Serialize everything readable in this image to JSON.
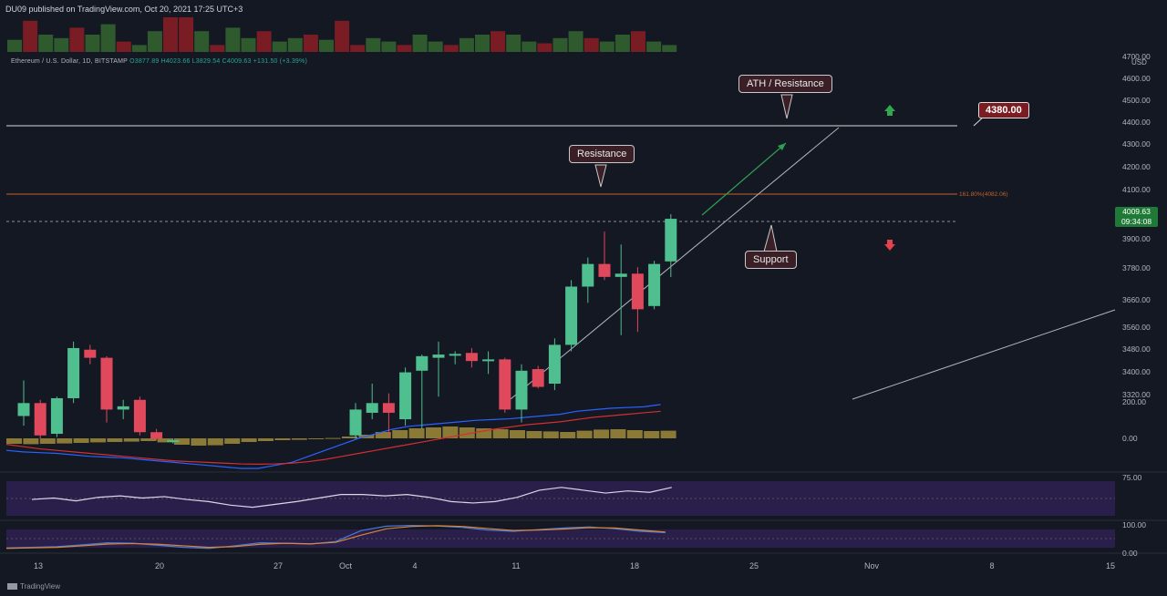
{
  "header": {
    "published": "DU09 published on TradingView.com, Oct 20, 2021 17:25 UTC+3"
  },
  "legend": {
    "symbol": "Ethereum / U.S. Dollar, 1D, BITSTAMP",
    "ohlc": "O3877.89  H4023.66  L3829.54  C4009.63  +131.50 (+3.39%)"
  },
  "price_axis": {
    "currency": "USD",
    "labels": [
      "4700.00",
      "4600.00",
      "4500.00",
      "4400.00",
      "4300.00",
      "4200.00",
      "4100.00",
      "3900.00",
      "3780.00",
      "3660.00",
      "3560.00",
      "3480.00",
      "3400.00",
      "3320.00"
    ],
    "current_price": "4009.63",
    "countdown": "09:34:08",
    "fib_label": "161.80%(4082.06)"
  },
  "macd_axis": {
    "labels": [
      "200.00",
      "0.00"
    ]
  },
  "rsi_axis": {
    "labels": [
      "75.00"
    ]
  },
  "stoch_axis": {
    "labels": [
      "100.00",
      "0.00"
    ]
  },
  "time_axis": {
    "labels": [
      "13",
      "20",
      "27",
      "Oct",
      "4",
      "11",
      "18",
      "25",
      "Nov",
      "8",
      "15"
    ]
  },
  "annotations": {
    "ath": "ATH / Resistance",
    "resistance": "Resistance",
    "support": "Support",
    "level_4380": "4380.00"
  },
  "footer": {
    "brand": "TradingView"
  },
  "colors": {
    "up": "#4fbf8f",
    "down": "#e0485c",
    "bg": "#141823",
    "fib": "#c4622d",
    "macd": "#2962ff",
    "signal": "#d32f2f",
    "hist": "#8a7a35",
    "rsi_band": "#2a1f4a"
  },
  "chart_data": {
    "type": "candlestick",
    "y_range": [
      3280,
      4720
    ],
    "candles": [
      {
        "o": 3400,
        "h": 3510,
        "l": 3370,
        "c": 3440
      },
      {
        "o": 3440,
        "h": 3450,
        "l": 3330,
        "c": 3340
      },
      {
        "o": 3345,
        "h": 3460,
        "l": 3335,
        "c": 3455
      },
      {
        "o": 3455,
        "h": 3630,
        "l": 3440,
        "c": 3610
      },
      {
        "o": 3605,
        "h": 3620,
        "l": 3560,
        "c": 3580
      },
      {
        "o": 3580,
        "h": 3585,
        "l": 3380,
        "c": 3420
      },
      {
        "o": 3420,
        "h": 3450,
        "l": 3390,
        "c": 3430
      },
      {
        "o": 3450,
        "h": 3460,
        "l": 3340,
        "c": 3350
      },
      {
        "o": 3350,
        "h": 3360,
        "l": 3325,
        "c": 3330
      },
      {
        "o": 3320,
        "h": 3330,
        "l": 3315,
        "c": 3325
      },
      {
        "o": 3340,
        "h": 3440,
        "l": 3330,
        "c": 3420
      },
      {
        "o": 3410,
        "h": 3500,
        "l": 3390,
        "c": 3440
      },
      {
        "o": 3440,
        "h": 3470,
        "l": 3335,
        "c": 3410
      },
      {
        "o": 3390,
        "h": 3550,
        "l": 3370,
        "c": 3535
      },
      {
        "o": 3540,
        "h": 3590,
        "l": 3360,
        "c": 3585
      },
      {
        "o": 3580,
        "h": 3630,
        "l": 3460,
        "c": 3590
      },
      {
        "o": 3588,
        "h": 3600,
        "l": 3560,
        "c": 3592
      },
      {
        "o": 3595,
        "h": 3610,
        "l": 3550,
        "c": 3570
      },
      {
        "o": 3570,
        "h": 3600,
        "l": 3530,
        "c": 3575
      },
      {
        "o": 3575,
        "h": 3580,
        "l": 3410,
        "c": 3420
      },
      {
        "o": 3420,
        "h": 3560,
        "l": 3380,
        "c": 3540
      },
      {
        "o": 3545,
        "h": 3555,
        "l": 3485,
        "c": 3490
      },
      {
        "o": 3500,
        "h": 3640,
        "l": 3480,
        "c": 3620
      },
      {
        "o": 3620,
        "h": 3820,
        "l": 3600,
        "c": 3800
      },
      {
        "o": 3800,
        "h": 3890,
        "l": 3750,
        "c": 3870
      },
      {
        "o": 3870,
        "h": 3970,
        "l": 3820,
        "c": 3830
      },
      {
        "o": 3830,
        "h": 3930,
        "l": 3650,
        "c": 3840
      },
      {
        "o": 3840,
        "h": 3860,
        "l": 3660,
        "c": 3730
      },
      {
        "o": 3740,
        "h": 3880,
        "l": 3730,
        "c": 3870
      },
      {
        "o": 3877.89,
        "h": 4023.66,
        "l": 3829.54,
        "c": 4009.63
      }
    ],
    "volume": [
      0.35,
      0.9,
      0.5,
      0.4,
      0.7,
      0.5,
      0.8,
      0.3,
      0.2,
      0.6,
      1,
      1,
      0.6,
      0.2,
      0.7,
      0.4,
      0.6,
      0.3,
      0.4,
      0.5,
      0.35,
      0.9,
      0.2,
      0.4,
      0.3,
      0.2,
      0.5,
      0.3,
      0.2,
      0.4,
      0.5,
      0.6,
      0.5,
      0.3,
      0.25,
      0.4,
      0.6,
      0.4,
      0.3,
      0.5,
      0.6,
      0.3,
      0.2
    ],
    "macd": [
      -80,
      -90,
      -95,
      -100,
      -110,
      -120,
      -125,
      -130,
      -140,
      -150,
      -160,
      -170,
      -180,
      -190,
      -200,
      -200,
      -180,
      -160,
      -120,
      -80,
      -40,
      0,
      30,
      60,
      80,
      90,
      100,
      110,
      120,
      125,
      130,
      140,
      150,
      160,
      180,
      190,
      200,
      205,
      210,
      225
    ],
    "signal": [
      -40,
      -55,
      -70,
      -80,
      -90,
      -100,
      -110,
      -120,
      -130,
      -140,
      -150,
      -155,
      -160,
      -165,
      -170,
      -172,
      -170,
      -165,
      -155,
      -140,
      -120,
      -100,
      -80,
      -60,
      -40,
      -20,
      0,
      20,
      40,
      60,
      75,
      90,
      100,
      110,
      125,
      140,
      150,
      160,
      170,
      180
    ],
    "hist": [
      -30,
      -32,
      -30,
      -28,
      -25,
      -22,
      -20,
      -18,
      -15,
      -22,
      -35,
      -40,
      -38,
      -30,
      -20,
      -15,
      -10,
      -8,
      -4,
      2,
      10,
      20,
      35,
      45,
      55,
      60,
      65,
      60,
      55,
      50,
      45,
      40,
      38,
      35,
      42,
      48,
      50,
      45,
      40,
      42
    ],
    "rsi": [
      53,
      55,
      51,
      56,
      58,
      55,
      57,
      53,
      50,
      45,
      42,
      46,
      50,
      55,
      60,
      60,
      58,
      60,
      56,
      50,
      48,
      50,
      56,
      66,
      70,
      66,
      62,
      65,
      63,
      70
    ],
    "stoch_k": [
      10,
      12,
      15,
      22,
      30,
      28,
      20,
      12,
      8,
      18,
      30,
      28,
      25,
      35,
      78,
      95,
      98,
      96,
      90,
      80,
      75,
      82,
      88,
      92,
      85,
      75,
      70
    ],
    "stoch_d": [
      8,
      10,
      12,
      18,
      25,
      27,
      24,
      18,
      12,
      15,
      24,
      28,
      26,
      32,
      60,
      85,
      94,
      97,
      94,
      86,
      78,
      80,
      84,
      89,
      88,
      80,
      72
    ]
  }
}
